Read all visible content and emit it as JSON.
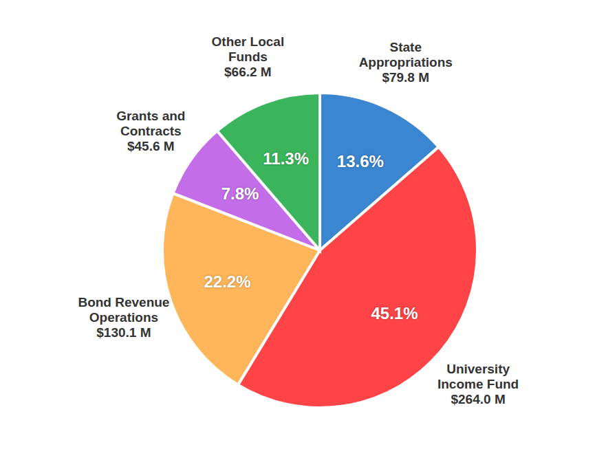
{
  "chart_data": {
    "type": "pie",
    "categories": [
      "State Appropriations",
      "University Income Fund",
      "Bond Revenue Operations",
      "Grants and Contracts",
      "Other Local Funds"
    ],
    "values": [
      13.6,
      45.1,
      22.2,
      7.8,
      11.3
    ],
    "value_labels": [
      "13.6%",
      "45.1%",
      "22.2%",
      "7.8%",
      "11.3%"
    ],
    "amounts": [
      79.8,
      264.0,
      130.1,
      45.6,
      66.2
    ],
    "amount_labels": [
      "$79.8 M",
      "$264.0 M",
      "$130.1 M",
      "$45.6 M",
      "$66.2 M"
    ],
    "colors": [
      "#3a86d0",
      "#ff4448",
      "#ffb55a",
      "#c36ee8",
      "#3bb55c"
    ],
    "data_labels": true
  }
}
